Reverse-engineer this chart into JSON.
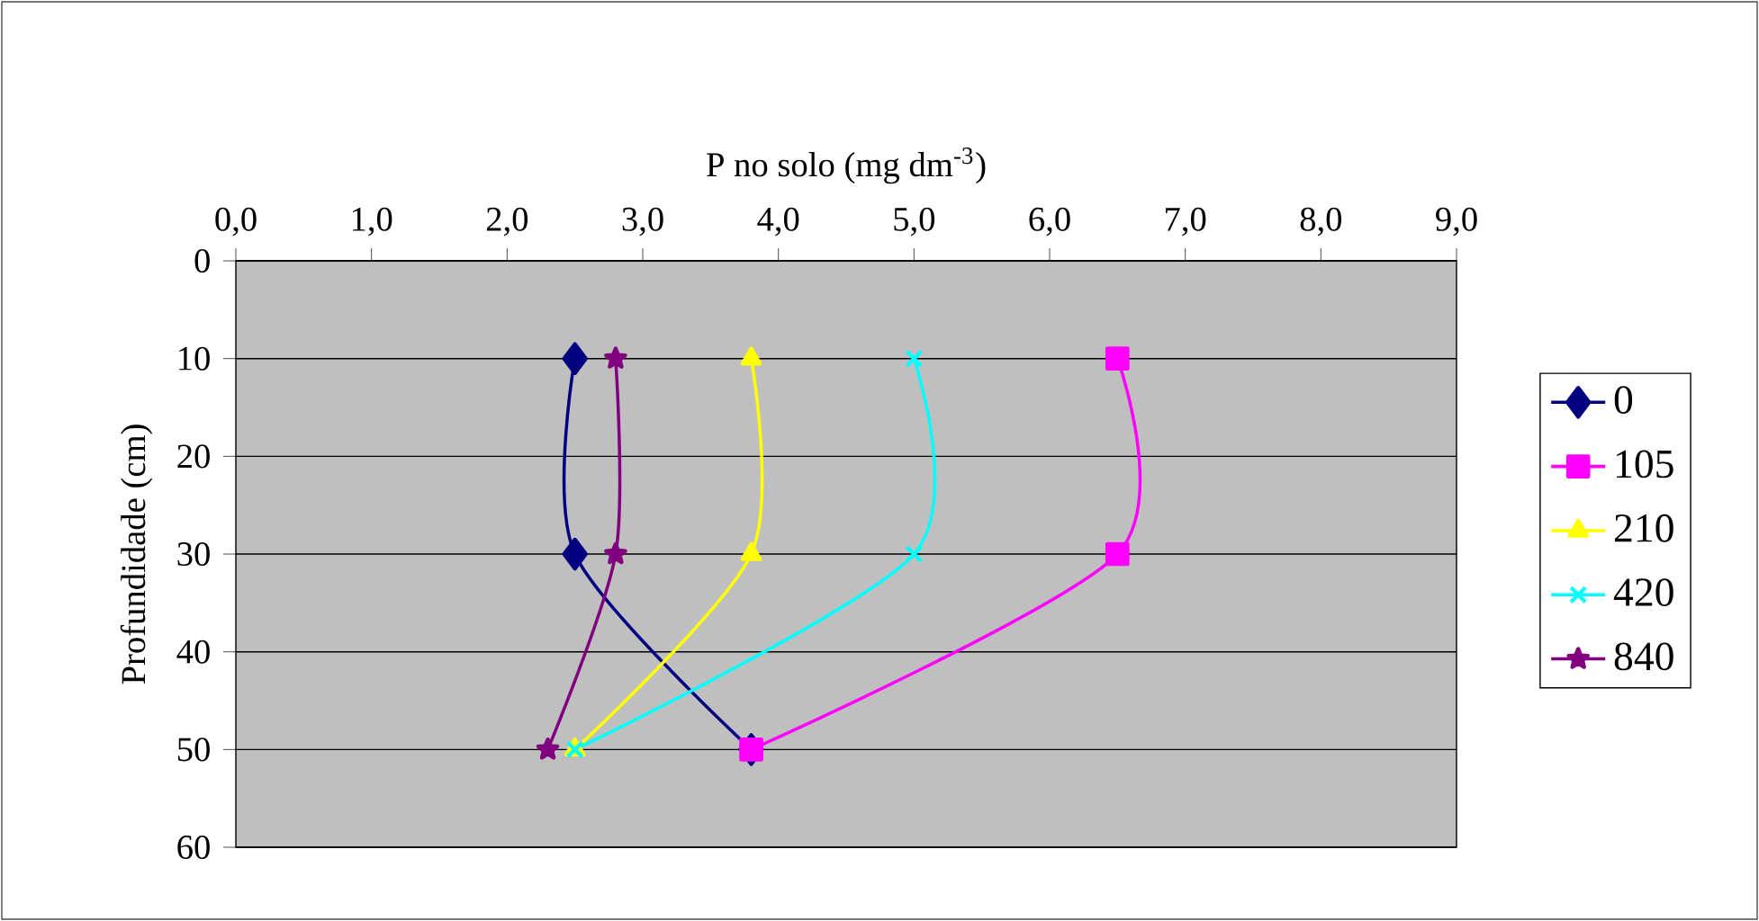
{
  "chart_data": {
    "type": "line",
    "xlabel": "P no solo (mg dm$^{-3}$)",
    "ylabel": "Profundidade (cm)",
    "xlim": [
      0,
      9
    ],
    "xticks": [
      {
        "value": 0,
        "label": "0,0"
      },
      {
        "value": 1,
        "label": "1,0"
      },
      {
        "value": 2,
        "label": "2,0"
      },
      {
        "value": 3,
        "label": "3,0"
      },
      {
        "value": 4,
        "label": "4,0"
      },
      {
        "value": 5,
        "label": "5,0"
      },
      {
        "value": 6,
        "label": "6,0"
      },
      {
        "value": 7,
        "label": "7,0"
      },
      {
        "value": 8,
        "label": "8,0"
      },
      {
        "value": 9,
        "label": "9,0"
      }
    ],
    "ylim": [
      60,
      0
    ],
    "yticks": [
      0,
      10,
      20,
      30,
      40,
      50,
      60
    ],
    "grid": "y",
    "legend": "right",
    "series": [
      {
        "name": "0",
        "color": "#000080",
        "marker": "diamond",
        "x": [
          2.5,
          2.5,
          3.8
        ],
        "values": [
          10,
          30,
          50
        ]
      },
      {
        "name": "105",
        "color": "#ff00ff",
        "marker": "square",
        "x": [
          6.5,
          6.5,
          3.8
        ],
        "values": [
          10,
          30,
          50
        ]
      },
      {
        "name": "210",
        "color": "#ffff00",
        "marker": "triangle",
        "x": [
          3.8,
          3.8,
          2.5
        ],
        "values": [
          10,
          30,
          50
        ]
      },
      {
        "name": "420",
        "color": "#00ffff",
        "marker": "cross",
        "x": [
          5.0,
          5.0,
          2.5
        ],
        "values": [
          10,
          30,
          50
        ]
      },
      {
        "name": "840",
        "color": "#800080",
        "marker": "star",
        "x": [
          2.8,
          2.8,
          2.3
        ],
        "values": [
          10,
          30,
          50
        ]
      }
    ]
  }
}
